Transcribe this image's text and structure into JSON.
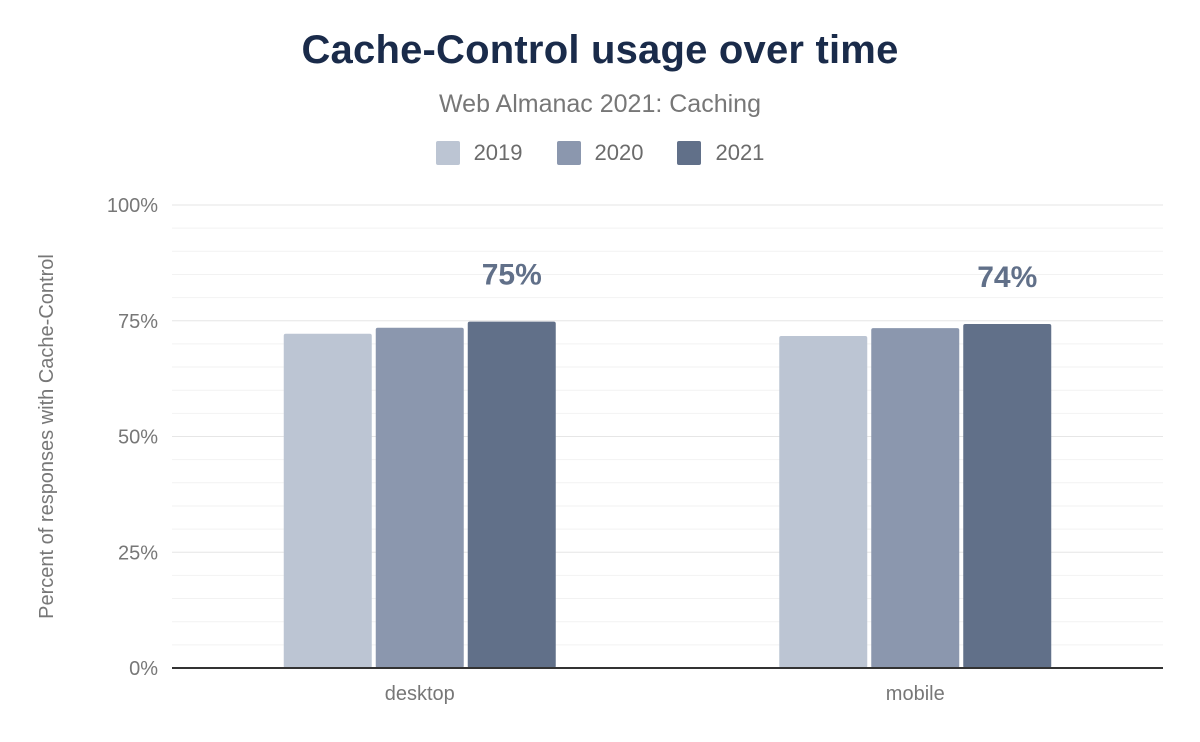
{
  "chart_data": {
    "type": "bar",
    "title": "Cache-Control usage over time",
    "subtitle": "Web Almanac 2021: Caching",
    "ylabel": "Percent of responses with Cache-Control",
    "xlabel": "",
    "categories": [
      "desktop",
      "mobile"
    ],
    "series": [
      {
        "name": "2019",
        "color": "#bcc5d3",
        "values": [
          72.2,
          71.7
        ]
      },
      {
        "name": "2020",
        "color": "#8b97ae",
        "values": [
          73.5,
          73.4
        ]
      },
      {
        "name": "2021",
        "color": "#617089",
        "values": [
          74.8,
          74.3
        ]
      }
    ],
    "data_labels": [
      {
        "category": "desktop",
        "series": "2021",
        "text": "75%"
      },
      {
        "category": "mobile",
        "series": "2021",
        "text": "74%"
      }
    ],
    "ylim": [
      0,
      100
    ],
    "yticks": [
      0,
      25,
      50,
      75,
      100
    ],
    "ytick_labels": [
      "0%",
      "25%",
      "50%",
      "75%",
      "100%"
    ],
    "grid": true,
    "legend_position": "top-center"
  }
}
